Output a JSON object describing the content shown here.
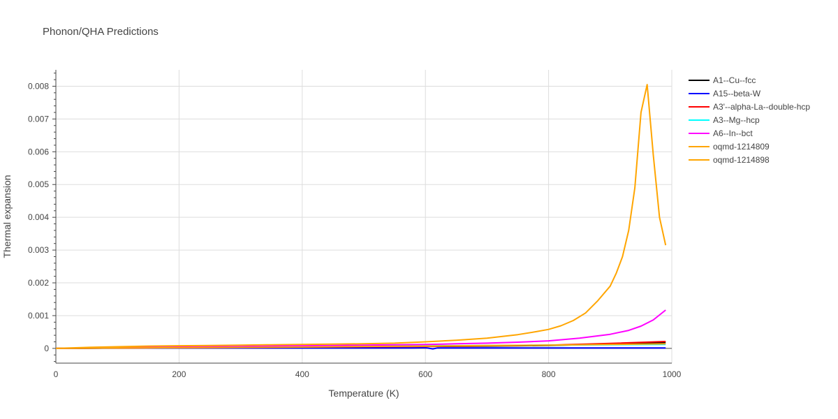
{
  "chart_data": {
    "type": "line",
    "title": "Phonon/QHA Predictions",
    "xlabel": "Temperature (K)",
    "ylabel": "Thermal expansion",
    "xlim": [
      0,
      1000
    ],
    "ylim": [
      -0.00045,
      0.0085
    ],
    "xticks": [
      0,
      200,
      400,
      600,
      800,
      1000
    ],
    "xtick_labels": [
      "0",
      "200",
      "400",
      "600",
      "800",
      "1000"
    ],
    "yticks": [
      0,
      0.001,
      0.002,
      0.003,
      0.004,
      0.005,
      0.006,
      0.007,
      0.008
    ],
    "ytick_labels": [
      "0",
      "0.001",
      "0.002",
      "0.003",
      "0.004",
      "0.005",
      "0.006",
      "0.007",
      "0.008"
    ],
    "grid": true,
    "legend_position": "right",
    "series": [
      {
        "name": "A1--Cu--fcc",
        "color": "#000000",
        "x": [
          0,
          100,
          200,
          300,
          400,
          500,
          600,
          700,
          800,
          900,
          990
        ],
        "y": [
          0,
          1e-05,
          2e-05,
          3e-05,
          4e-05,
          5e-05,
          6e-05,
          7e-05,
          9e-05,
          0.00013,
          0.00018
        ]
      },
      {
        "name": "A15--beta-W",
        "color": "#0000ff",
        "x": [
          0,
          100,
          200,
          300,
          400,
          500,
          580,
          600,
          612,
          620,
          700,
          800,
          900,
          990
        ],
        "y": [
          0,
          5e-06,
          1e-05,
          1e-05,
          1.2e-05,
          1.4e-05,
          1.5e-05,
          2e-05,
          -1.5e-05,
          1.5e-05,
          1.5e-05,
          1.5e-05,
          1.5e-05,
          1.5e-05
        ]
      },
      {
        "name": "A3'--alpha-La--double-hcp",
        "color": "#ff0000",
        "x": [
          0,
          100,
          200,
          300,
          400,
          500,
          600,
          700,
          800,
          900,
          990
        ],
        "y": [
          0,
          1e-05,
          2e-05,
          3e-05,
          4e-05,
          5e-05,
          6e-05,
          8e-05,
          0.0001,
          0.00015,
          0.00021
        ]
      },
      {
        "name": "A3--Mg--hcp",
        "color": "#00ffff",
        "x": [
          0,
          100,
          200,
          300,
          400,
          500,
          600,
          700,
          800,
          900,
          990
        ],
        "y": [
          0,
          2e-05,
          4e-05,
          5e-05,
          6e-05,
          7e-05,
          8e-05,
          9e-05,
          0.0001,
          0.00011,
          0.00012
        ]
      },
      {
        "name": "A6--In--bct",
        "color": "#ff00ff",
        "x": [
          0,
          100,
          200,
          300,
          400,
          500,
          600,
          650,
          700,
          750,
          800,
          850,
          900,
          930,
          950,
          970,
          990
        ],
        "y": [
          0,
          2e-05,
          4e-05,
          6e-05,
          8e-05,
          0.0001,
          0.00012,
          0.00014,
          0.00016,
          0.00019,
          0.00023,
          0.00031,
          0.00043,
          0.00055,
          0.00068,
          0.00087,
          0.00117
        ]
      },
      {
        "name": "oqmd-1214809",
        "color": "#ffa500",
        "x": [
          0,
          100,
          200,
          300,
          400,
          500,
          600,
          700,
          800,
          900,
          990
        ],
        "y": [
          0,
          1e-05,
          2e-05,
          3e-05,
          4e-05,
          6e-05,
          7e-05,
          9e-05,
          0.0001,
          0.00012,
          0.00014
        ]
      },
      {
        "name": "oqmd-1214898",
        "color": "#ffa500",
        "x": [
          0,
          50,
          100,
          150,
          200,
          250,
          300,
          350,
          400,
          450,
          500,
          550,
          600,
          650,
          700,
          750,
          780,
          800,
          820,
          840,
          860,
          880,
          900,
          910,
          920,
          930,
          940,
          950,
          960,
          970,
          980,
          990
        ],
        "y": [
          0,
          3e-05,
          5e-05,
          7e-05,
          8e-05,
          9e-05,
          0.0001,
          0.00011,
          0.00012,
          0.00013,
          0.00014,
          0.00016,
          0.0002,
          0.00025,
          0.00031,
          0.00042,
          0.00051,
          0.00058,
          0.00069,
          0.00085,
          0.00108,
          0.00146,
          0.0019,
          0.0023,
          0.0028,
          0.0036,
          0.0049,
          0.0072,
          0.00805,
          0.0059,
          0.004,
          0.00315
        ]
      }
    ]
  }
}
